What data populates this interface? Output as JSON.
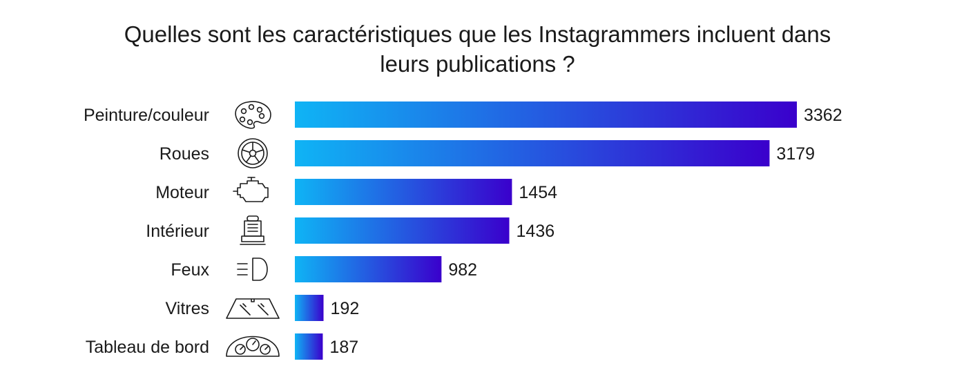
{
  "chart_data": {
    "type": "bar",
    "orientation": "horizontal",
    "title_lines": [
      "Quelles sont les caractéristiques que les Instagrammers incluent dans",
      "leurs publications ?"
    ],
    "categories": [
      "Peinture/couleur",
      "Roues",
      "Moteur",
      "Intérieur",
      "Feux",
      "Vitres",
      "Tableau de bord"
    ],
    "values": [
      3362,
      3179,
      1454,
      1436,
      982,
      192,
      187
    ],
    "icons": [
      "palette-icon",
      "wheel-icon",
      "engine-icon",
      "car-seat-icon",
      "headlight-icon",
      "windshield-icon",
      "dashboard-icon"
    ],
    "xlim": [
      0,
      3362
    ],
    "grid": false,
    "legend": "none",
    "colors": {
      "gradient_start": "#0fb4f5",
      "gradient_end": "#3a00cc"
    }
  }
}
